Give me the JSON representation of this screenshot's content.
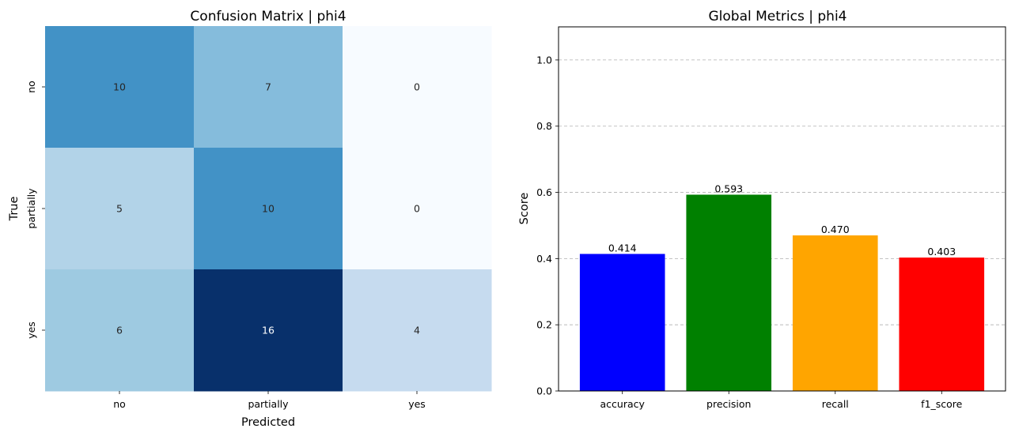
{
  "chart_data": [
    {
      "type": "heatmap",
      "title": "Confusion Matrix | phi4",
      "xlabel": "Predicted",
      "ylabel": "True",
      "x_categories": [
        "no",
        "partially",
        "yes"
      ],
      "y_categories": [
        "no",
        "partially",
        "yes"
      ],
      "values": [
        [
          10,
          7,
          0
        ],
        [
          5,
          10,
          0
        ],
        [
          6,
          16,
          4
        ]
      ],
      "colormap": "Blues",
      "colorbar": false
    },
    {
      "type": "bar",
      "title": "Global Metrics | phi4",
      "xlabel": "",
      "ylabel": "Score",
      "categories": [
        "accuracy",
        "precision",
        "recall",
        "f1_score"
      ],
      "values": [
        0.414,
        0.593,
        0.47,
        0.403
      ],
      "data_labels": [
        "0.414",
        "0.593",
        "0.470",
        "0.403"
      ],
      "colors": [
        "#0000ff",
        "#008000",
        "#ffa500",
        "#ff0000"
      ],
      "ylim": [
        0,
        1.1
      ],
      "yticks": [
        "0.0",
        "0.2",
        "0.4",
        "0.6",
        "0.8",
        "1.0"
      ],
      "grid": "y-dashed"
    }
  ]
}
